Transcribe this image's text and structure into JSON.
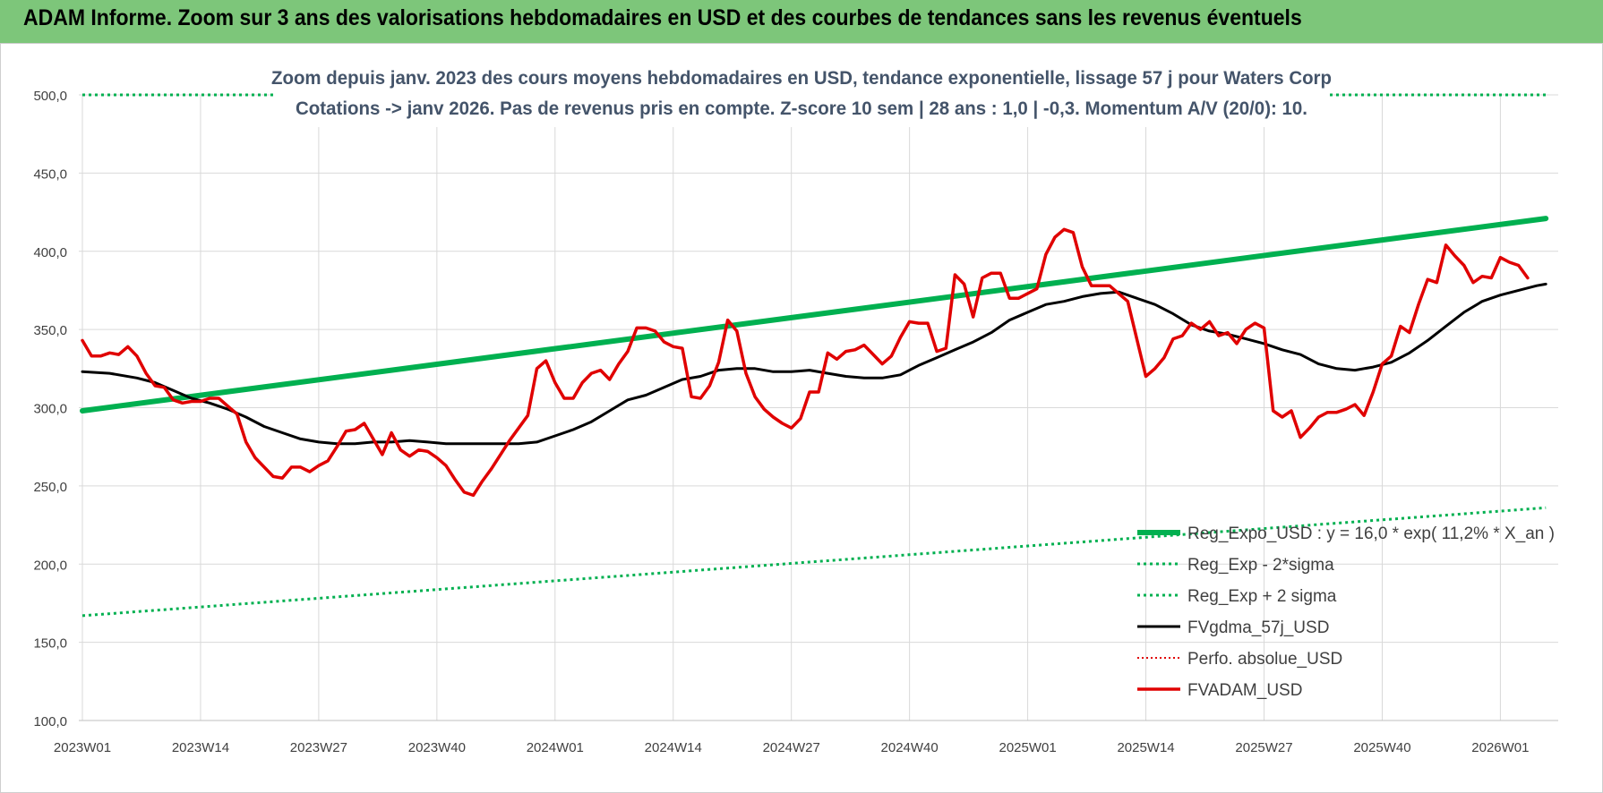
{
  "header": {
    "title": "ADAM Informe. Zoom sur 3 ans des valorisations hebdomadaires en USD et des courbes de tendances sans les revenus éventuels"
  },
  "chart_data": {
    "type": "line",
    "title_line1": "Zoom depuis janv. 2023 des cours moyens hebdomadaires en USD, tendance exponentielle, lissage 57 j pour Waters Corp",
    "title_line2": "Cotations -> janv 2026. Pas de revenus pris en compte. Z-score 10 sem | 28 ans : 1,0 | -0,3. Momentum A/V (20/0): 10.",
    "ylim": [
      100,
      500
    ],
    "y_ticks": [
      "100,0",
      "150,0",
      "200,0",
      "250,0",
      "300,0",
      "350,0",
      "400,0",
      "450,0",
      "500,0"
    ],
    "x_ticks": [
      "2023W01",
      "2023W14",
      "2023W27",
      "2023W40",
      "2024W01",
      "2024W14",
      "2024W27",
      "2024W40",
      "2025W01",
      "2025W14",
      "2025W27",
      "2025W40",
      "2026W01"
    ],
    "x_tick_positions": [
      0,
      13,
      26,
      39,
      52,
      65,
      78,
      91,
      104,
      117,
      130,
      143,
      156
    ],
    "x_max": 161,
    "grid": true,
    "legend_position": "bottom-right",
    "colors": {
      "green": "#00b050",
      "red": "#e00000",
      "black": "#000000"
    },
    "series": [
      {
        "name": "Reg_Expo_USD : y = 16,0 * exp( 11,2% * X_an )",
        "style": "thick-green",
        "points": [
          [
            0,
            298
          ],
          [
            161,
            421
          ]
        ]
      },
      {
        "name": "Reg_Exp - 2*sigma",
        "style": "dotted-green",
        "points": [
          [
            0,
            167
          ],
          [
            161,
            236
          ]
        ]
      },
      {
        "name": "Reg_Exp + 2 sigma",
        "style": "dotted-green",
        "points": [
          [
            0,
            500
          ],
          [
            161,
            500
          ]
        ]
      },
      {
        "name": "FVgdma_57j_USD",
        "style": "black",
        "points": [
          [
            0,
            323
          ],
          [
            3,
            322
          ],
          [
            6,
            319
          ],
          [
            8,
            316
          ],
          [
            10,
            311
          ],
          [
            12,
            306
          ],
          [
            14,
            303
          ],
          [
            16,
            299
          ],
          [
            18,
            294
          ],
          [
            20,
            288
          ],
          [
            22,
            284
          ],
          [
            24,
            280
          ],
          [
            26,
            278
          ],
          [
            28,
            277
          ],
          [
            30,
            277
          ],
          [
            32,
            278
          ],
          [
            34,
            278
          ],
          [
            36,
            279
          ],
          [
            38,
            278
          ],
          [
            40,
            277
          ],
          [
            44,
            277
          ],
          [
            46,
            277
          ],
          [
            48,
            277
          ],
          [
            50,
            278
          ],
          [
            52,
            282
          ],
          [
            54,
            286
          ],
          [
            56,
            291
          ],
          [
            58,
            298
          ],
          [
            60,
            305
          ],
          [
            62,
            308
          ],
          [
            64,
            313
          ],
          [
            66,
            318
          ],
          [
            68,
            320
          ],
          [
            70,
            324
          ],
          [
            72,
            325
          ],
          [
            74,
            325
          ],
          [
            76,
            323
          ],
          [
            78,
            323
          ],
          [
            80,
            324
          ],
          [
            82,
            322
          ],
          [
            84,
            320
          ],
          [
            86,
            319
          ],
          [
            88,
            319
          ],
          [
            90,
            321
          ],
          [
            92,
            327
          ],
          [
            94,
            332
          ],
          [
            96,
            337
          ],
          [
            98,
            342
          ],
          [
            100,
            348
          ],
          [
            102,
            356
          ],
          [
            104,
            361
          ],
          [
            106,
            366
          ],
          [
            108,
            368
          ],
          [
            110,
            371
          ],
          [
            112,
            373
          ],
          [
            114,
            374
          ],
          [
            116,
            370
          ],
          [
            118,
            366
          ],
          [
            120,
            360
          ],
          [
            122,
            353
          ],
          [
            124,
            349
          ],
          [
            126,
            347
          ],
          [
            128,
            344
          ],
          [
            130,
            341
          ],
          [
            132,
            337
          ],
          [
            134,
            334
          ],
          [
            136,
            328
          ],
          [
            138,
            325
          ],
          [
            140,
            324
          ],
          [
            142,
            326
          ],
          [
            144,
            329
          ],
          [
            146,
            335
          ],
          [
            148,
            343
          ],
          [
            150,
            352
          ],
          [
            152,
            361
          ],
          [
            154,
            368
          ],
          [
            156,
            372
          ],
          [
            158,
            375
          ],
          [
            160,
            378
          ],
          [
            161,
            379
          ]
        ]
      },
      {
        "name": "Perfo. absolue_USD",
        "style": "dotted-red",
        "points": []
      },
      {
        "name": "FVADAM_USD",
        "style": "red",
        "points": [
          [
            0,
            343
          ],
          [
            1,
            333
          ],
          [
            2,
            333
          ],
          [
            3,
            335
          ],
          [
            4,
            334
          ],
          [
            5,
            339
          ],
          [
            6,
            333
          ],
          [
            7,
            322
          ],
          [
            8,
            314
          ],
          [
            9,
            313
          ],
          [
            10,
            305
          ],
          [
            11,
            303
          ],
          [
            12,
            304
          ],
          [
            13,
            304
          ],
          [
            14,
            306
          ],
          [
            15,
            306
          ],
          [
            16,
            301
          ],
          [
            17,
            296
          ],
          [
            18,
            278
          ],
          [
            19,
            268
          ],
          [
            20,
            262
          ],
          [
            21,
            256
          ],
          [
            22,
            255
          ],
          [
            23,
            262
          ],
          [
            24,
            262
          ],
          [
            25,
            259
          ],
          [
            26,
            263
          ],
          [
            27,
            266
          ],
          [
            28,
            275
          ],
          [
            29,
            285
          ],
          [
            30,
            286
          ],
          [
            31,
            290
          ],
          [
            32,
            280
          ],
          [
            33,
            270
          ],
          [
            34,
            284
          ],
          [
            35,
            273
          ],
          [
            36,
            269
          ],
          [
            37,
            273
          ],
          [
            38,
            272
          ],
          [
            39,
            268
          ],
          [
            40,
            263
          ],
          [
            41,
            254
          ],
          [
            42,
            246
          ],
          [
            43,
            244
          ],
          [
            44,
            253
          ],
          [
            45,
            261
          ],
          [
            46,
            270
          ],
          [
            47,
            279
          ],
          [
            48,
            287
          ],
          [
            49,
            295
          ],
          [
            50,
            325
          ],
          [
            51,
            330
          ],
          [
            52,
            316
          ],
          [
            53,
            306
          ],
          [
            54,
            306
          ],
          [
            55,
            316
          ],
          [
            56,
            322
          ],
          [
            57,
            324
          ],
          [
            58,
            318
          ],
          [
            59,
            328
          ],
          [
            60,
            336
          ],
          [
            61,
            351
          ],
          [
            62,
            351
          ],
          [
            63,
            349
          ],
          [
            64,
            342
          ],
          [
            65,
            339
          ],
          [
            66,
            338
          ],
          [
            67,
            307
          ],
          [
            68,
            306
          ],
          [
            69,
            314
          ],
          [
            70,
            329
          ],
          [
            71,
            356
          ],
          [
            72,
            349
          ],
          [
            73,
            322
          ],
          [
            74,
            307
          ],
          [
            75,
            299
          ],
          [
            76,
            294
          ],
          [
            77,
            290
          ],
          [
            78,
            287
          ],
          [
            79,
            293
          ],
          [
            80,
            310
          ],
          [
            81,
            310
          ],
          [
            82,
            335
          ],
          [
            83,
            331
          ],
          [
            84,
            336
          ],
          [
            85,
            337
          ],
          [
            86,
            340
          ],
          [
            87,
            334
          ],
          [
            88,
            328
          ],
          [
            89,
            333
          ],
          [
            90,
            345
          ],
          [
            91,
            355
          ],
          [
            92,
            354
          ],
          [
            93,
            354
          ],
          [
            94,
            336
          ],
          [
            95,
            338
          ],
          [
            96,
            385
          ],
          [
            97,
            379
          ],
          [
            98,
            358
          ],
          [
            99,
            383
          ],
          [
            100,
            386
          ],
          [
            101,
            386
          ],
          [
            102,
            370
          ],
          [
            103,
            370
          ],
          [
            104,
            373
          ],
          [
            105,
            376
          ],
          [
            106,
            398
          ],
          [
            107,
            409
          ],
          [
            108,
            414
          ],
          [
            109,
            412
          ],
          [
            110,
            390
          ],
          [
            111,
            378
          ],
          [
            112,
            378
          ],
          [
            113,
            378
          ],
          [
            114,
            373
          ],
          [
            115,
            368
          ],
          [
            116,
            344
          ],
          [
            117,
            320
          ],
          [
            118,
            325
          ],
          [
            119,
            332
          ],
          [
            120,
            344
          ],
          [
            121,
            346
          ],
          [
            122,
            354
          ],
          [
            123,
            350
          ],
          [
            124,
            355
          ],
          [
            125,
            346
          ],
          [
            126,
            348
          ],
          [
            127,
            341
          ],
          [
            128,
            350
          ],
          [
            129,
            354
          ],
          [
            130,
            351
          ],
          [
            131,
            298
          ],
          [
            132,
            294
          ],
          [
            133,
            298
          ],
          [
            134,
            281
          ],
          [
            135,
            287
          ],
          [
            136,
            294
          ],
          [
            137,
            297
          ],
          [
            138,
            297
          ],
          [
            139,
            299
          ],
          [
            140,
            302
          ],
          [
            141,
            295
          ],
          [
            142,
            310
          ],
          [
            143,
            328
          ],
          [
            144,
            333
          ],
          [
            145,
            352
          ],
          [
            146,
            348
          ],
          [
            147,
            366
          ],
          [
            148,
            382
          ],
          [
            149,
            380
          ],
          [
            150,
            404
          ],
          [
            151,
            397
          ],
          [
            152,
            391
          ],
          [
            153,
            380
          ],
          [
            154,
            384
          ],
          [
            155,
            383
          ],
          [
            156,
            396
          ],
          [
            157,
            393
          ],
          [
            158,
            391
          ],
          [
            159,
            383
          ]
        ]
      }
    ]
  }
}
